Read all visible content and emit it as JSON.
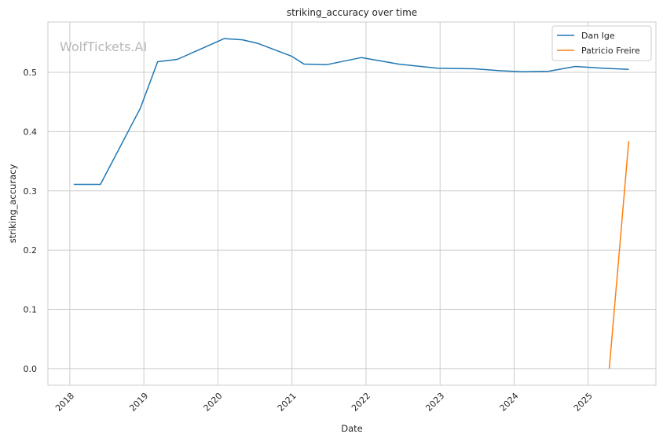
{
  "watermark": "WolfTickets.AI",
  "chart_data": {
    "type": "line",
    "title": "striking_accuracy over time",
    "xlabel": "Date",
    "ylabel": "striking_accuracy",
    "x_ticks": [
      "2018",
      "2019",
      "2020",
      "2021",
      "2022",
      "2023",
      "2024",
      "2025"
    ],
    "y_ticks": [
      "0.0",
      "0.1",
      "0.2",
      "0.3",
      "0.4",
      "0.5"
    ],
    "xlim": [
      "2017-09-15",
      "2025-12-01"
    ],
    "ylim": [
      -0.028,
      0.585
    ],
    "grid": true,
    "legend_position": "top-right",
    "series": [
      {
        "name": "Dan Ige",
        "color": "#1f77b4",
        "points": [
          [
            "2018-01-20",
            0.311
          ],
          [
            "2018-06-01",
            0.311
          ],
          [
            "2018-12-15",
            0.44
          ],
          [
            "2019-03-10",
            0.518
          ],
          [
            "2019-06-15",
            0.522
          ],
          [
            "2020-02-01",
            0.557
          ],
          [
            "2020-05-01",
            0.555
          ],
          [
            "2020-07-15",
            0.549
          ],
          [
            "2021-01-01",
            0.527
          ],
          [
            "2021-03-01",
            0.514
          ],
          [
            "2021-06-20",
            0.513
          ],
          [
            "2021-12-10",
            0.525
          ],
          [
            "2022-06-10",
            0.514
          ],
          [
            "2022-12-20",
            0.507
          ],
          [
            "2023-06-20",
            0.506
          ],
          [
            "2023-10-15",
            0.503
          ],
          [
            "2024-02-10",
            0.501
          ],
          [
            "2024-06-20",
            0.502
          ],
          [
            "2024-10-30",
            0.51
          ],
          [
            "2025-03-15",
            0.507
          ],
          [
            "2025-07-20",
            0.505
          ]
        ]
      },
      {
        "name": "Patricio Freire",
        "color": "#ff7f0e",
        "points": [
          [
            "2025-04-15",
            0.0
          ],
          [
            "2025-07-20",
            0.384
          ]
        ]
      }
    ]
  }
}
